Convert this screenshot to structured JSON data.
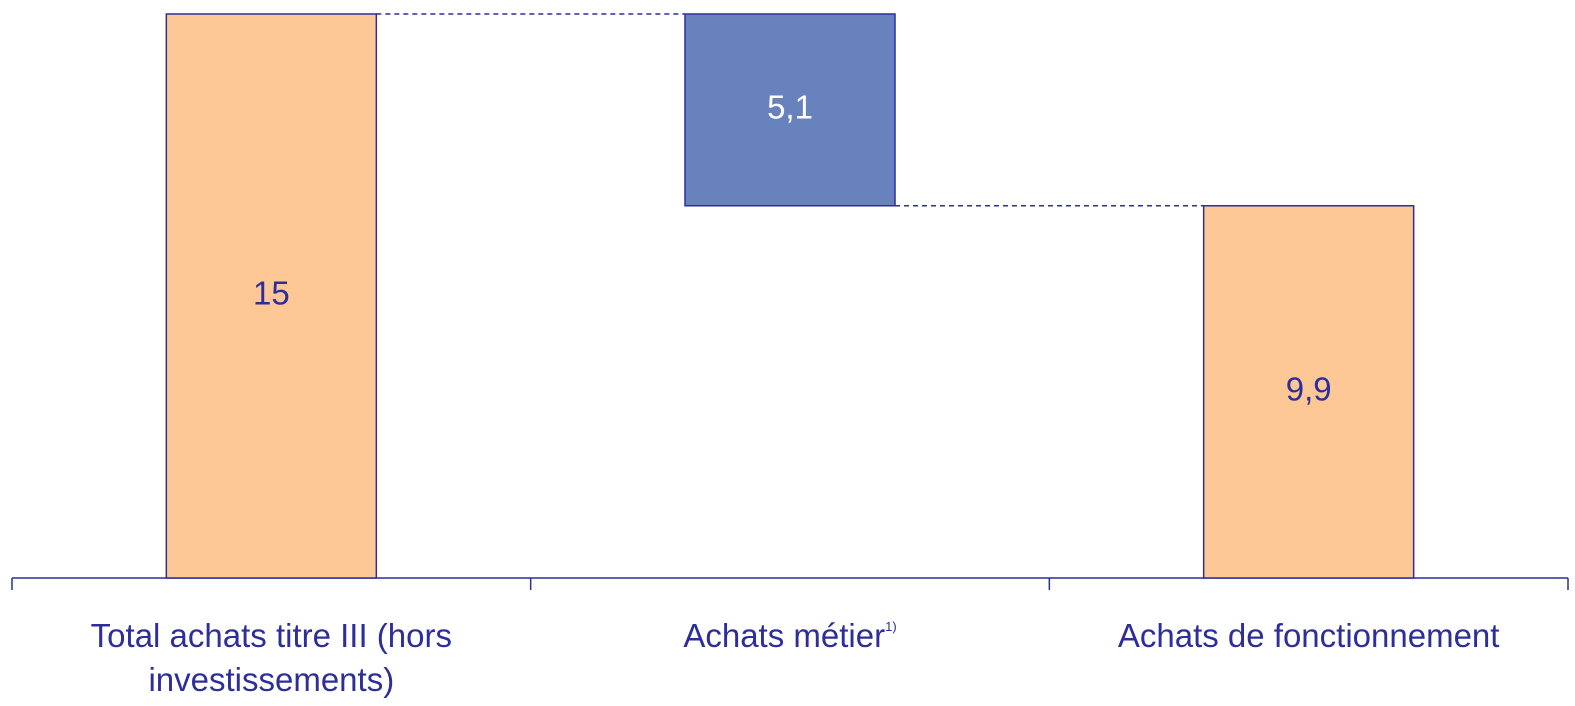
{
  "chart_data": {
    "type": "waterfall",
    "categories": [
      "Total achats titre III (hors investissements)",
      "Achats métier",
      "Achats de fonctionnement"
    ],
    "footnote_marks": [
      null,
      "1)",
      null
    ],
    "values": [
      15,
      5.1,
      9.9
    ],
    "value_labels": [
      "15",
      "5,1",
      "9,9"
    ],
    "measure": [
      "absolute",
      "decrease",
      "absolute"
    ],
    "colors": [
      "#fdc896",
      "#6782bc",
      "#fdc896"
    ],
    "ylim": [
      0,
      15
    ]
  }
}
